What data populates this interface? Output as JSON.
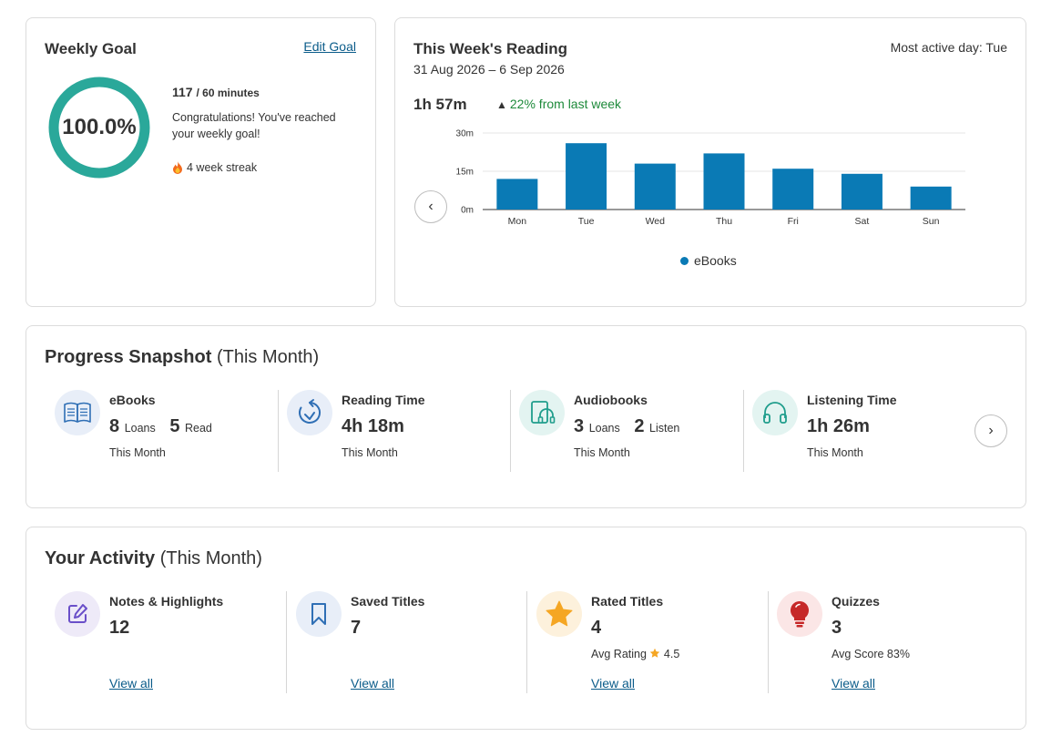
{
  "weekly_goal": {
    "title": "Weekly Goal",
    "edit_label": "Edit Goal",
    "percent_label": "100.0%",
    "progress_fraction": 1.0,
    "ring_color": "#2aa89a",
    "minutes_done": "117",
    "minutes_goal": "/ 60 minutes",
    "message": "Congratulations! You've reached your weekly goal!",
    "streak_icon": "fire-icon",
    "streak": "4 week streak"
  },
  "weekly_reading": {
    "title": "This Week's Reading",
    "date_range": "31 Aug 2026 – 6 Sep 2026",
    "most_active": "Most active day: Tue",
    "total": "1h 57m",
    "change": "22% from last week",
    "change_color": "#1d8a3a",
    "prev_icon": "chevron-left-icon",
    "legend": "eBooks"
  },
  "chart_data": {
    "type": "bar",
    "categories": [
      "Mon",
      "Tue",
      "Wed",
      "Thu",
      "Fri",
      "Sat",
      "Sun"
    ],
    "series": [
      {
        "name": "eBooks",
        "values": [
          12,
          26,
          18,
          22,
          16,
          14,
          9
        ],
        "color": "#0a7ab5"
      }
    ],
    "ylim": [
      0,
      30
    ],
    "yticks": [
      0,
      15,
      30
    ],
    "ytick_labels": [
      "0m",
      "15m",
      "30m"
    ],
    "grid": true,
    "legend_position": "bottom"
  },
  "snapshot": {
    "title": "Progress Snapshot",
    "subtitle": "(This Month)",
    "next_icon": "chevron-right-icon",
    "items": [
      {
        "icon": "book-open-icon",
        "icon_bg": "#e8eef8",
        "label": "eBooks",
        "v1": "8",
        "u1": "Loans",
        "v2": "5",
        "u2": "Read",
        "sub": "This Month"
      },
      {
        "icon": "clock-refresh-icon",
        "icon_bg": "#e8eef8",
        "label": "Reading Time",
        "value": "4h 18m",
        "sub": "This Month"
      },
      {
        "icon": "tablet-headphones-icon",
        "icon_bg": "#e3f4f1",
        "label": "Audiobooks",
        "v1": "3",
        "u1": "Loans",
        "v2": "2",
        "u2": "Listen",
        "sub": "This Month"
      },
      {
        "icon": "headphones-icon",
        "icon_bg": "#e3f4f1",
        "label": "Listening Time",
        "value": "1h 26m",
        "sub": "This Month"
      }
    ]
  },
  "activity": {
    "title": "Your Activity",
    "subtitle": "(This Month)",
    "items": [
      {
        "icon": "edit-note-icon",
        "icon_bg": "#eeeaf8",
        "label": "Notes & Highlights",
        "value": "12",
        "link": "View all"
      },
      {
        "icon": "bookmark-icon",
        "icon_bg": "#e8eef8",
        "label": "Saved Titles",
        "value": "7",
        "link": "View all"
      },
      {
        "icon": "star-icon",
        "icon_bg": "#fdf1dc",
        "label": "Rated Titles",
        "value": "4",
        "sub_prefix": "Avg Rating",
        "sub_value": "4.5",
        "link": "View all"
      },
      {
        "icon": "lightbulb-icon",
        "icon_bg": "#fbe6e6",
        "label": "Quizzes",
        "value": "3",
        "sub": "Avg Score 83%",
        "link": "View all"
      }
    ]
  }
}
